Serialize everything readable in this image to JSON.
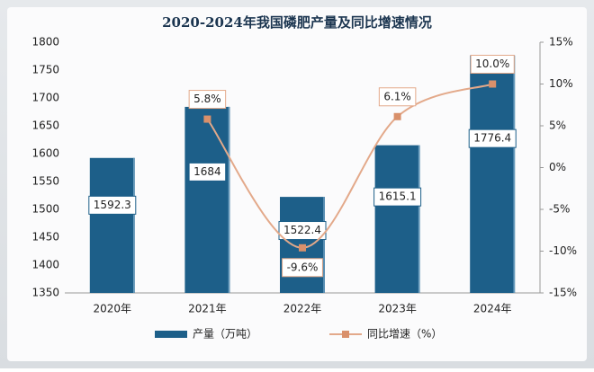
{
  "chart_data": {
    "type": "bar_line",
    "title": "2020-2024年我国磷肥产量及同比增速情况",
    "categories": [
      "2020年",
      "2021年",
      "2022年",
      "2023年",
      "2024年"
    ],
    "series": [
      {
        "name": "产量（万吨）",
        "type": "bar",
        "color": "#1d5f89",
        "values": [
          1592.3,
          1684,
          1522.4,
          1615.1,
          1776.4
        ]
      },
      {
        "name": "同比增速（%）",
        "type": "line",
        "axis": "y2",
        "color": "#e3a98a",
        "values": [
          null,
          5.8,
          -9.6,
          6.1,
          10.0
        ],
        "value_labels": [
          null,
          "5.8%",
          "-9.6%",
          "6.1%",
          "10.0%"
        ]
      }
    ],
    "ylim": [
      1350,
      1800
    ],
    "yticks": [
      1350,
      1400,
      1450,
      1500,
      1550,
      1600,
      1650,
      1700,
      1750,
      1800
    ],
    "y2lim": [
      -15,
      15
    ],
    "y2ticks": [
      {
        "value": -15,
        "label": "-15%"
      },
      {
        "value": -10,
        "label": "-10%"
      },
      {
        "value": -5,
        "label": "-5%"
      },
      {
        "value": 0,
        "label": "0%"
      },
      {
        "value": 5,
        "label": "5%"
      },
      {
        "value": 10,
        "label": "10%"
      },
      {
        "value": 15,
        "label": "15%"
      }
    ],
    "grid": false
  }
}
